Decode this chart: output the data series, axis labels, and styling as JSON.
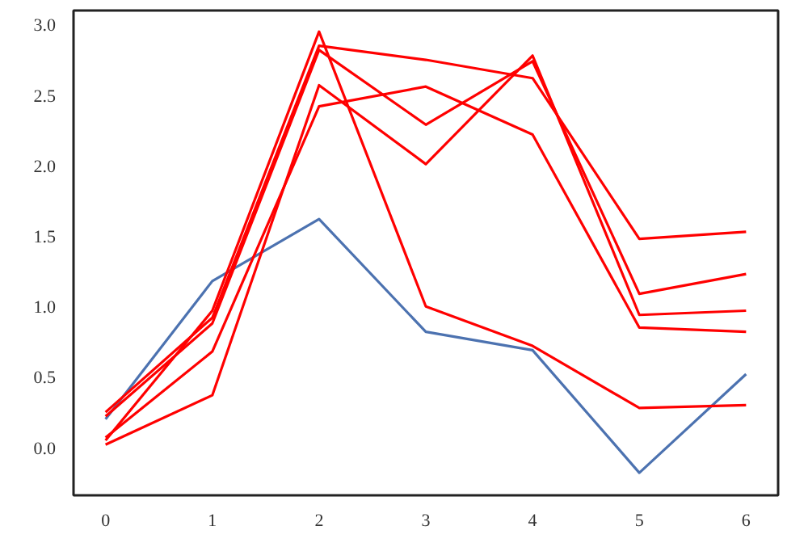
{
  "chart_data": {
    "type": "line",
    "x": [
      0,
      1,
      2,
      3,
      4,
      5,
      6
    ],
    "series": [
      {
        "color": "#4c72b0",
        "values": [
          0.2,
          1.18,
          1.62,
          0.82,
          0.69,
          -0.18,
          0.52
        ]
      },
      {
        "color": "#ff0000",
        "values": [
          0.05,
          0.97,
          2.95,
          1.0,
          0.72,
          0.28,
          0.3
        ]
      },
      {
        "color": "#ff0000",
        "values": [
          0.25,
          0.92,
          2.85,
          2.75,
          2.62,
          1.48,
          1.53
        ]
      },
      {
        "color": "#ff0000",
        "values": [
          0.07,
          0.68,
          2.42,
          2.56,
          2.22,
          0.85,
          0.82
        ]
      },
      {
        "color": "#ff0000",
        "values": [
          0.02,
          0.37,
          2.57,
          2.01,
          2.78,
          0.94,
          0.97
        ]
      },
      {
        "color": "#ff0000",
        "values": [
          0.22,
          0.88,
          2.82,
          2.29,
          2.74,
          1.09,
          1.23
        ]
      }
    ],
    "xlim": [
      -0.3,
      6.3
    ],
    "ylim": [
      -0.34,
      3.1
    ],
    "xticks": [
      0,
      1,
      2,
      3,
      4,
      5,
      6
    ],
    "yticks": [
      {
        "value": 0,
        "label": "0.0"
      },
      {
        "value": 0.5,
        "label": "0.5"
      },
      {
        "value": 1,
        "label": "1.0"
      },
      {
        "value": 1.5,
        "label": "1.5"
      },
      {
        "value": 2,
        "label": "2.0"
      },
      {
        "value": 2.5,
        "label": "2.5"
      },
      {
        "value": 3,
        "label": "3.0"
      }
    ],
    "grid": false,
    "marker": "none",
    "line_style": "solid"
  }
}
